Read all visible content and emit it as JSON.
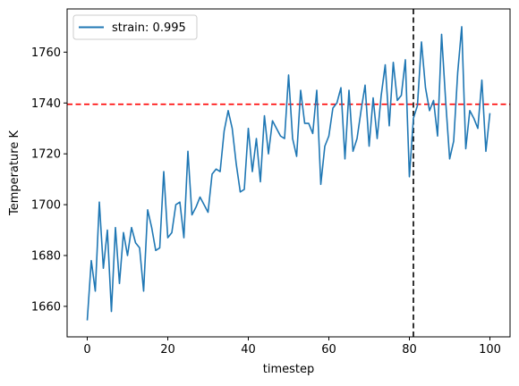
{
  "chart_data": {
    "type": "line",
    "xlabel": "timestep",
    "ylabel": "Temperature K",
    "xlim": [
      -5,
      105
    ],
    "ylim": [
      1648,
      1777
    ],
    "xticks": [
      0,
      20,
      40,
      60,
      80,
      100
    ],
    "yticks": [
      1660,
      1680,
      1700,
      1720,
      1740,
      1760
    ],
    "grid": false,
    "legend": {
      "placement": "upper-left"
    },
    "series": [
      {
        "name": "strain: 0.995",
        "color": "#1f77b4",
        "x": [
          0,
          1,
          2,
          3,
          4,
          5,
          6,
          7,
          8,
          9,
          10,
          11,
          12,
          13,
          14,
          15,
          16,
          17,
          18,
          19,
          20,
          21,
          22,
          23,
          24,
          25,
          26,
          27,
          28,
          29,
          30,
          31,
          32,
          33,
          34,
          35,
          36,
          37,
          38,
          39,
          40,
          41,
          42,
          43,
          44,
          45,
          46,
          47,
          48,
          49,
          50,
          51,
          52,
          53,
          54,
          55,
          56,
          57,
          58,
          59,
          60,
          61,
          62,
          63,
          64,
          65,
          66,
          67,
          68,
          69,
          70,
          71,
          72,
          73,
          74,
          75,
          76,
          77,
          78,
          79,
          80,
          81,
          82,
          83,
          84,
          85,
          86,
          87,
          88,
          89,
          90,
          91,
          92,
          93,
          94,
          95,
          96,
          97,
          98,
          99,
          100
        ],
        "y": [
          1654.5,
          1678,
          1666,
          1701,
          1675,
          1690,
          1658,
          1691,
          1669,
          1689,
          1680,
          1691,
          1685,
          1683,
          1666,
          1698,
          1691,
          1682,
          1683,
          1713,
          1687,
          1689,
          1700,
          1701,
          1687,
          1721,
          1696,
          1699,
          1703,
          1700,
          1697,
          1712,
          1714,
          1713,
          1729,
          1737,
          1730,
          1716,
          1705,
          1706,
          1730,
          1713,
          1726,
          1709,
          1735,
          1720,
          1733,
          1730,
          1727,
          1726,
          1751,
          1726,
          1719,
          1745,
          1732,
          1732,
          1728,
          1745,
          1708,
          1723,
          1727,
          1738,
          1740,
          1746,
          1718,
          1745,
          1721,
          1726,
          1737,
          1747,
          1723,
          1742,
          1726,
          1743,
          1755,
          1731,
          1756,
          1741,
          1743,
          1757,
          1711,
          1734,
          1739,
          1764,
          1746,
          1737,
          1741,
          1727,
          1767,
          1741,
          1718,
          1725,
          1752,
          1770,
          1722,
          1737,
          1734,
          1730,
          1749,
          1721,
          1736
        ]
      }
    ],
    "reference_lines": [
      {
        "orientation": "horizontal",
        "value": 1739.5,
        "color": "#ff0000",
        "style": "dashed"
      },
      {
        "orientation": "vertical",
        "value": 81,
        "color": "#000000",
        "style": "dashed"
      }
    ]
  }
}
